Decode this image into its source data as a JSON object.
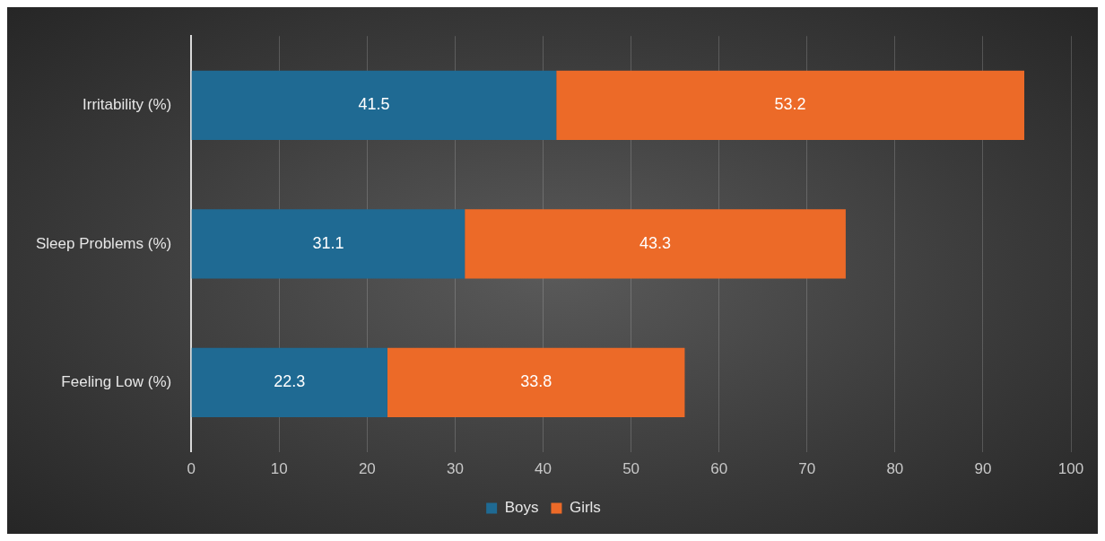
{
  "chart_data": {
    "type": "bar",
    "orientation": "horizontal",
    "stacked": true,
    "categories": [
      "Irritability (%)",
      "Sleep Problems (%)",
      "Feeling Low (%)"
    ],
    "series": [
      {
        "name": "Boys",
        "color": "#1f6a93",
        "values": [
          41.5,
          31.1,
          22.3
        ]
      },
      {
        "name": "Girls",
        "color": "#ec6a28",
        "values": [
          53.2,
          43.3,
          33.8
        ]
      }
    ],
    "xlim": [
      0,
      100
    ],
    "xticks": [
      0,
      10,
      20,
      30,
      40,
      50,
      60,
      70,
      80,
      90,
      100
    ],
    "grid": "x",
    "legend": "bottom",
    "data_labels": true
  }
}
